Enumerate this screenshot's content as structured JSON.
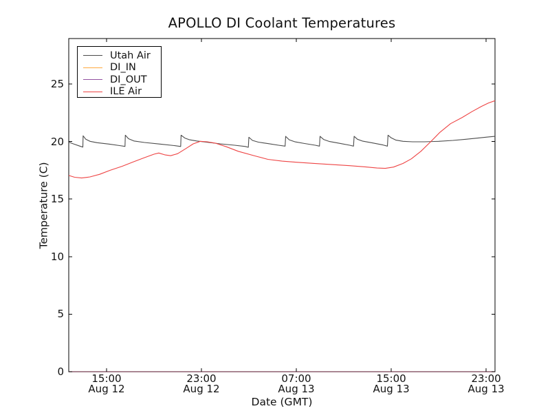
{
  "chart_data": {
    "type": "line",
    "title": "APOLLO DI Coolant Temperatures",
    "xlabel": "Date (GMT)",
    "ylabel": "Temperature (C)",
    "x_unit": "hours since Aug 12 00:00 GMT",
    "xlim": [
      11.81,
      47.75
    ],
    "ylim": [
      0,
      28.95
    ],
    "grid": false,
    "frame_color": "#000000",
    "legend_position": "upper-left",
    "xticks": [
      {
        "hour": 15,
        "time": "15:00",
        "date": "Aug 12"
      },
      {
        "hour": 23,
        "time": "23:00",
        "date": "Aug 12"
      },
      {
        "hour": 31,
        "time": "07:00",
        "date": "Aug 13"
      },
      {
        "hour": 39,
        "time": "15:00",
        "date": "Aug 13"
      },
      {
        "hour": 47,
        "time": "23:00",
        "date": "Aug 13"
      }
    ],
    "yticks": [
      {
        "label": "0",
        "value": 0
      },
      {
        "label": "5",
        "value": 5
      },
      {
        "label": "10",
        "value": 10
      },
      {
        "label": "15",
        "value": 15
      },
      {
        "label": "20",
        "value": 20
      },
      {
        "label": "25",
        "value": 25
      }
    ],
    "series": [
      {
        "name": "Utah Air",
        "color": "#4a4a4a",
        "width": 1.1,
        "opacity": 1,
        "points": [
          [
            11.81,
            19.95
          ],
          [
            12.2,
            19.8
          ],
          [
            12.75,
            19.6
          ],
          [
            13.0,
            19.52
          ],
          [
            13.02,
            20.5
          ],
          [
            13.25,
            20.2
          ],
          [
            13.6,
            20.02
          ],
          [
            14.2,
            19.9
          ],
          [
            15.2,
            19.78
          ],
          [
            16.1,
            19.65
          ],
          [
            16.55,
            19.58
          ],
          [
            16.58,
            20.55
          ],
          [
            16.85,
            20.25
          ],
          [
            17.3,
            20.05
          ],
          [
            18.2,
            19.92
          ],
          [
            19.5,
            19.78
          ],
          [
            20.7,
            19.65
          ],
          [
            21.25,
            19.57
          ],
          [
            21.28,
            20.55
          ],
          [
            21.6,
            20.3
          ],
          [
            22.0,
            20.15
          ],
          [
            22.6,
            20.05
          ],
          [
            23.4,
            19.95
          ],
          [
            24.6,
            19.8
          ],
          [
            25.8,
            19.68
          ],
          [
            26.7,
            19.57
          ],
          [
            26.95,
            19.5
          ],
          [
            27.0,
            20.37
          ],
          [
            27.3,
            20.1
          ],
          [
            27.8,
            19.95
          ],
          [
            28.6,
            19.82
          ],
          [
            29.5,
            19.68
          ],
          [
            30.05,
            19.6
          ],
          [
            30.1,
            20.45
          ],
          [
            30.4,
            20.15
          ],
          [
            30.9,
            19.97
          ],
          [
            31.7,
            19.83
          ],
          [
            32.6,
            19.68
          ],
          [
            32.95,
            19.6
          ],
          [
            33.0,
            20.45
          ],
          [
            33.3,
            20.18
          ],
          [
            33.8,
            20.0
          ],
          [
            34.6,
            19.85
          ],
          [
            35.5,
            19.68
          ],
          [
            35.82,
            19.6
          ],
          [
            35.87,
            20.45
          ],
          [
            36.15,
            20.2
          ],
          [
            36.6,
            20.03
          ],
          [
            37.4,
            19.88
          ],
          [
            38.3,
            19.7
          ],
          [
            38.68,
            19.6
          ],
          [
            38.73,
            20.55
          ],
          [
            39.0,
            20.32
          ],
          [
            39.4,
            20.12
          ],
          [
            40.0,
            20.02
          ],
          [
            40.8,
            19.98
          ],
          [
            41.8,
            19.98
          ],
          [
            43.0,
            20.02
          ],
          [
            44.2,
            20.1
          ],
          [
            45.3,
            20.2
          ],
          [
            46.3,
            20.3
          ],
          [
            47.2,
            20.4
          ],
          [
            47.75,
            20.45
          ]
        ]
      },
      {
        "name": "DI_IN",
        "color": "#ffa93d",
        "width": 1.6,
        "opacity": 0.3,
        "points": [
          [
            11.81,
            0
          ],
          [
            47.75,
            0
          ]
        ]
      },
      {
        "name": "DI_OUT",
        "color": "#9150a0",
        "width": 1.6,
        "opacity": 0.46,
        "points": [
          [
            11.81,
            0
          ],
          [
            47.75,
            0
          ]
        ]
      },
      {
        "name": "ILE Air",
        "color": "#ee4242",
        "width": 1.1,
        "opacity": 1,
        "points": [
          [
            11.81,
            17.05
          ],
          [
            12.3,
            16.9
          ],
          [
            12.9,
            16.83
          ],
          [
            13.6,
            16.93
          ],
          [
            14.4,
            17.15
          ],
          [
            15.3,
            17.5
          ],
          [
            16.3,
            17.85
          ],
          [
            17.3,
            18.25
          ],
          [
            18.2,
            18.6
          ],
          [
            19.0,
            18.9
          ],
          [
            19.4,
            19.0
          ],
          [
            19.9,
            18.85
          ],
          [
            20.4,
            18.77
          ],
          [
            21.0,
            18.95
          ],
          [
            21.7,
            19.4
          ],
          [
            22.3,
            19.8
          ],
          [
            22.9,
            20.02
          ],
          [
            23.5,
            19.98
          ],
          [
            24.2,
            19.85
          ],
          [
            25.1,
            19.55
          ],
          [
            26.1,
            19.15
          ],
          [
            27.5,
            18.75
          ],
          [
            28.6,
            18.45
          ],
          [
            29.8,
            18.3
          ],
          [
            31.0,
            18.2
          ],
          [
            32.5,
            18.1
          ],
          [
            34.0,
            18.0
          ],
          [
            35.5,
            17.9
          ],
          [
            36.8,
            17.8
          ],
          [
            37.8,
            17.7
          ],
          [
            38.5,
            17.67
          ],
          [
            39.2,
            17.78
          ],
          [
            40.0,
            18.1
          ],
          [
            40.7,
            18.5
          ],
          [
            41.5,
            19.15
          ],
          [
            42.34,
            20.0
          ],
          [
            43.1,
            20.8
          ],
          [
            44.0,
            21.55
          ],
          [
            45.0,
            22.1
          ],
          [
            45.8,
            22.6
          ],
          [
            46.6,
            23.05
          ],
          [
            47.2,
            23.35
          ],
          [
            47.75,
            23.55
          ]
        ]
      }
    ]
  }
}
